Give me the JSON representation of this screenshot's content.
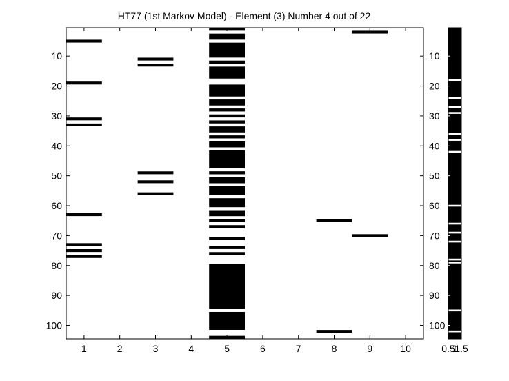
{
  "chart_data": {
    "type": "heatmap",
    "title": "HT77 (1st Markov Model) - Element (3) Number 4 out of 22",
    "main": {
      "xlim": [
        0.5,
        10.5
      ],
      "ylim": [
        0.5,
        104.5
      ],
      "y_reversed": true,
      "x_ticks": [
        1,
        2,
        3,
        4,
        5,
        6,
        7,
        8,
        9,
        10
      ],
      "y_ticks": [
        10,
        20,
        30,
        40,
        50,
        60,
        70,
        80,
        90,
        100
      ],
      "columns": [
        {
          "x": 1,
          "filled": [
            5,
            19,
            31,
            33,
            63,
            73,
            75,
            77
          ]
        },
        {
          "x": 2,
          "filled": []
        },
        {
          "x": 3,
          "filled": [
            11,
            13,
            49,
            52,
            56
          ]
        },
        {
          "x": 4,
          "filled": []
        },
        {
          "x": 5,
          "filled_ranges": [
            [
              1,
              1
            ],
            [
              3,
              4
            ],
            [
              6,
              10
            ],
            [
              12,
              12
            ],
            [
              14,
              17
            ],
            [
              20,
              23
            ],
            [
              25,
              26
            ],
            [
              28,
              28
            ],
            [
              30,
              30
            ],
            [
              32,
              32
            ],
            [
              34,
              35
            ],
            [
              37,
              37
            ],
            [
              39,
              40
            ],
            [
              42,
              47
            ],
            [
              49,
              49
            ],
            [
              51,
              52
            ],
            [
              54,
              56
            ],
            [
              58,
              60
            ],
            [
              62,
              63
            ],
            [
              65,
              65
            ],
            [
              67,
              67
            ],
            [
              71,
              71
            ],
            [
              74,
              74
            ],
            [
              76,
              76
            ],
            [
              80,
              94
            ],
            [
              96,
              101
            ],
            [
              104,
              104
            ]
          ]
        },
        {
          "x": 6,
          "filled": []
        },
        {
          "x": 7,
          "filled": []
        },
        {
          "x": 8,
          "filled": [
            65,
            102
          ]
        },
        {
          "x": 9,
          "filled": [
            2,
            70
          ]
        },
        {
          "x": 10,
          "filled": []
        }
      ]
    },
    "side": {
      "xlim": [
        0.5,
        1.5
      ],
      "ylim": [
        0.5,
        104.5
      ],
      "x_tick_labels": [
        "0.5",
        "1",
        "1.5"
      ],
      "x_tick_values": [
        0.5,
        1,
        1.5
      ],
      "y_ticks": [
        10,
        20,
        30,
        40,
        50,
        60,
        70,
        80,
        90,
        100
      ],
      "white_rows": [
        18,
        24,
        27,
        29,
        36,
        38,
        42,
        60,
        66,
        69,
        72,
        78,
        79,
        95,
        102
      ]
    }
  }
}
